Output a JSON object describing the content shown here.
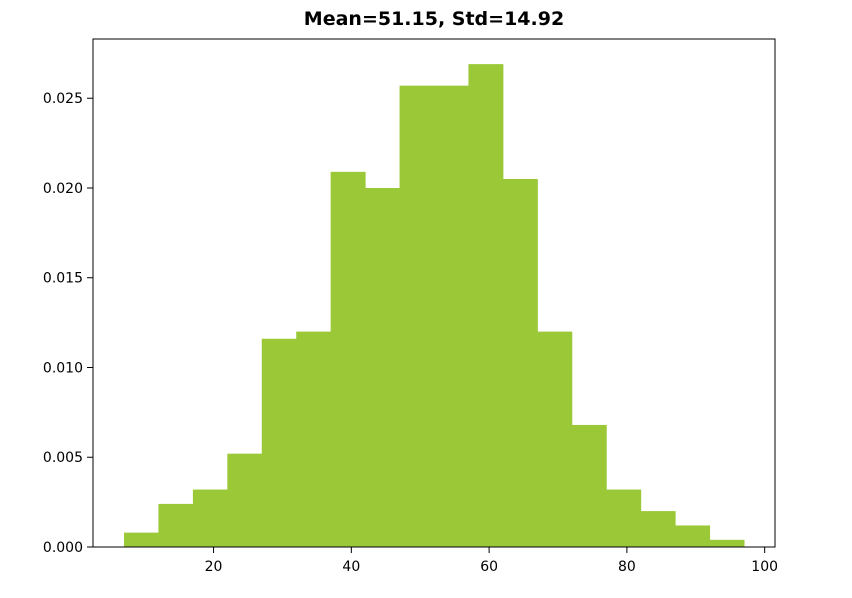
{
  "chart_data": {
    "type": "bar",
    "subtype": "histogram",
    "title": "Mean=51.15, Std=14.92",
    "xlabel": "",
    "ylabel": "",
    "color": "#9ac836",
    "grid": false,
    "xlim": [
      2.5,
      101.5
    ],
    "ylim": [
      0,
      0.0283
    ],
    "bin_edges": [
      7,
      12,
      17,
      22,
      27,
      32,
      37,
      42,
      47,
      52,
      57,
      62,
      67,
      72,
      77,
      82,
      87,
      92,
      97
    ],
    "values": [
      0.0008,
      0.0024,
      0.0032,
      0.0052,
      0.0116,
      0.012,
      0.0209,
      0.02,
      0.0257,
      0.0257,
      0.0269,
      0.0205,
      0.012,
      0.0068,
      0.0032,
      0.002,
      0.0012,
      0.0004
    ],
    "xticks": [
      20,
      40,
      60,
      80,
      100
    ],
    "xtick_labels": [
      "20",
      "40",
      "60",
      "80",
      "100"
    ],
    "yticks": [
      0,
      0.005,
      0.01,
      0.015,
      0.02,
      0.025
    ],
    "ytick_labels": [
      "0.000",
      "0.005",
      "0.010",
      "0.015",
      "0.020",
      "0.025"
    ]
  }
}
